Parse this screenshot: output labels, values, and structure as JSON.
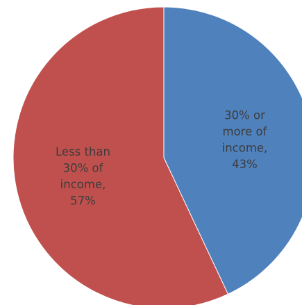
{
  "chart_data": {
    "type": "pie",
    "title": "",
    "start_angle_deg": 0,
    "direction": "clockwise",
    "legend": "none",
    "slices": [
      {
        "category": "30% or more of income",
        "value": 43,
        "display_value": "43%",
        "color": "#4f81bd",
        "label_lines": [
          "30% or",
          "more of",
          "income,",
          "43%"
        ]
      },
      {
        "category": "Less than 30% of income",
        "value": 57,
        "display_value": "57%",
        "color": "#c0504d",
        "label_lines": [
          "Less than",
          "30% of",
          "income,",
          "57%"
        ]
      }
    ]
  }
}
